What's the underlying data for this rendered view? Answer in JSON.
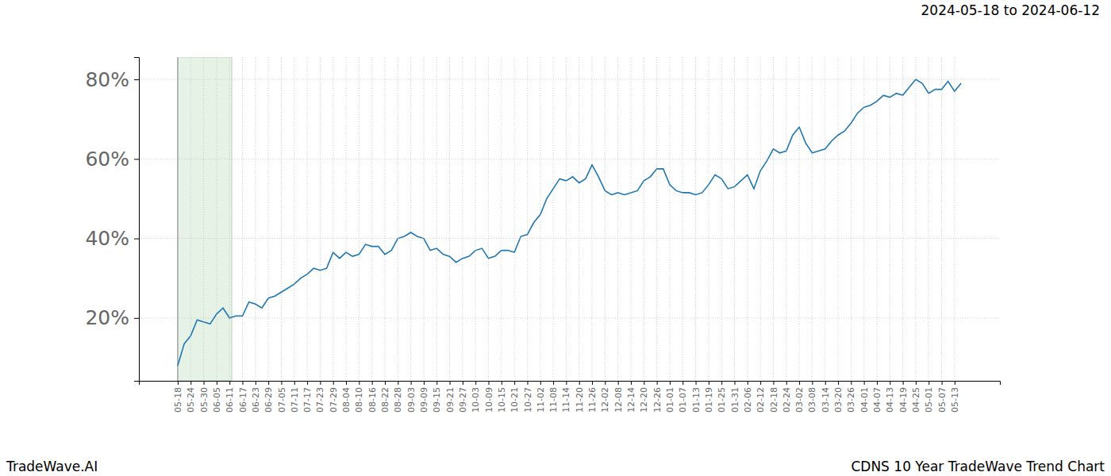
{
  "chart_data": {
    "type": "line",
    "title": "CDNS 10 Year TradeWave Trend Chart",
    "subtitle": "2024-05-18 to 2024-06-12",
    "annotations": [
      "TradeWave.AI"
    ],
    "categories": [
      "05-18",
      null,
      "05-24",
      null,
      "05-30",
      null,
      "06-05",
      null,
      "06-11",
      null,
      "06-17",
      null,
      "06-23",
      null,
      "06-29",
      null,
      "07-05",
      null,
      "07-11",
      null,
      "07-17",
      null,
      "07-23",
      null,
      "07-29",
      null,
      "08-04",
      null,
      "08-10",
      null,
      "08-16",
      null,
      "08-22",
      null,
      "08-28",
      null,
      "09-03",
      null,
      "09-09",
      null,
      "09-15",
      null,
      "09-21",
      null,
      "09-27",
      null,
      "10-03",
      null,
      "10-09",
      null,
      "10-15",
      null,
      "10-21",
      null,
      "10-27",
      null,
      "11-02",
      null,
      "11-08",
      null,
      "11-14",
      null,
      "11-20",
      null,
      "11-26",
      null,
      "12-02",
      null,
      "12-08",
      null,
      "12-14",
      null,
      "12-20",
      null,
      "12-26",
      null,
      "01-01",
      null,
      "01-07",
      null,
      "01-13",
      null,
      "01-19",
      null,
      "01-25",
      null,
      "01-31",
      null,
      "02-06",
      null,
      "02-12",
      null,
      "02-18",
      null,
      "02-24",
      null,
      "03-02",
      null,
      "03-08",
      null,
      "03-14",
      null,
      "03-20",
      null,
      "03-26",
      null,
      "04-01",
      null,
      "04-07",
      null,
      "04-13",
      null,
      "04-19",
      null,
      "04-25",
      null,
      "05-01",
      null,
      "05-07",
      null,
      "05-13",
      null
    ],
    "values": [
      8,
      13.5,
      15.5,
      19.5,
      19,
      18.5,
      21,
      22.5,
      20,
      20.5,
      20.5,
      24,
      23.5,
      22.5,
      25,
      25.5,
      26.5,
      27.5,
      28.5,
      30,
      31,
      32.5,
      32,
      32.5,
      36.5,
      35,
      36.5,
      35.5,
      36,
      38.5,
      38,
      38,
      36,
      37,
      40,
      40.5,
      41.5,
      40.5,
      40,
      37,
      37.5,
      36,
      35.5,
      34,
      35,
      35.5,
      37,
      37.5,
      35,
      35.5,
      37,
      37,
      36.5,
      40.5,
      41,
      44,
      46,
      50,
      52.5,
      55,
      54.5,
      55.5,
      54,
      55,
      58.5,
      55.5,
      52,
      51,
      51.5,
      51,
      51.5,
      52,
      54.5,
      55.5,
      57.5,
      57.5,
      53.5,
      52,
      51.5,
      51.5,
      51,
      51.5,
      53.5,
      56,
      55,
      52.5,
      53,
      54.5,
      56,
      52.5,
      57,
      59.5,
      62.5,
      61.5,
      62,
      66,
      68,
      64,
      61.5,
      62,
      62.5,
      64.5,
      66,
      67,
      69,
      71.5,
      73,
      73.5,
      74.5,
      76,
      75.5,
      76.5,
      76,
      78,
      80,
      79,
      76.5,
      77.5,
      77.5,
      79.5,
      77,
      79
    ],
    "color": "#1f77b4",
    "highlight_range": [
      0,
      8.35
    ],
    "ylim": [
      4.2,
      85.6
    ],
    "yticks": [
      {
        "value": 20,
        "label": "20%"
      },
      {
        "value": 40,
        "label": "40%"
      },
      {
        "value": 60,
        "label": "60%"
      },
      {
        "value": 80,
        "label": "80%"
      }
    ],
    "grid": true
  }
}
